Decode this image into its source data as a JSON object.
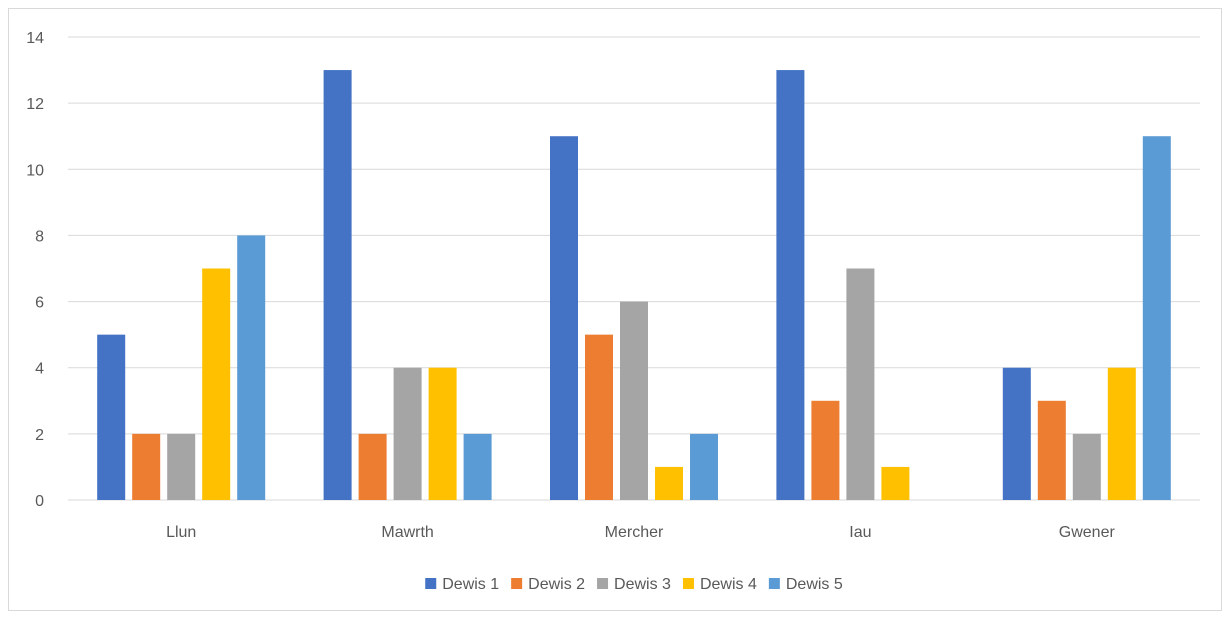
{
  "chart_data": {
    "type": "bar",
    "title": "",
    "xlabel": "",
    "ylabel": "",
    "categories": [
      "Llun",
      "Mawrth",
      "Mercher",
      "Iau",
      "Gwener"
    ],
    "series": [
      {
        "name": "Dewis 1",
        "color": "#4472c4",
        "values": [
          5,
          13,
          11,
          13,
          4
        ]
      },
      {
        "name": "Dewis 2",
        "color": "#ed7d31",
        "values": [
          2,
          2,
          5,
          3,
          3
        ]
      },
      {
        "name": "Dewis 3",
        "color": "#a5a5a5",
        "values": [
          2,
          4,
          6,
          7,
          2
        ]
      },
      {
        "name": "Dewis 4",
        "color": "#ffc000",
        "values": [
          7,
          4,
          1,
          1,
          4
        ]
      },
      {
        "name": "Dewis 5",
        "color": "#5b9bd5",
        "values": [
          8,
          2,
          2,
          0,
          11
        ]
      }
    ],
    "ylim": [
      0,
      14
    ],
    "yticks": [
      0,
      2,
      4,
      6,
      8,
      10,
      12,
      14
    ],
    "grid": true,
    "legend_position": "bottom"
  }
}
